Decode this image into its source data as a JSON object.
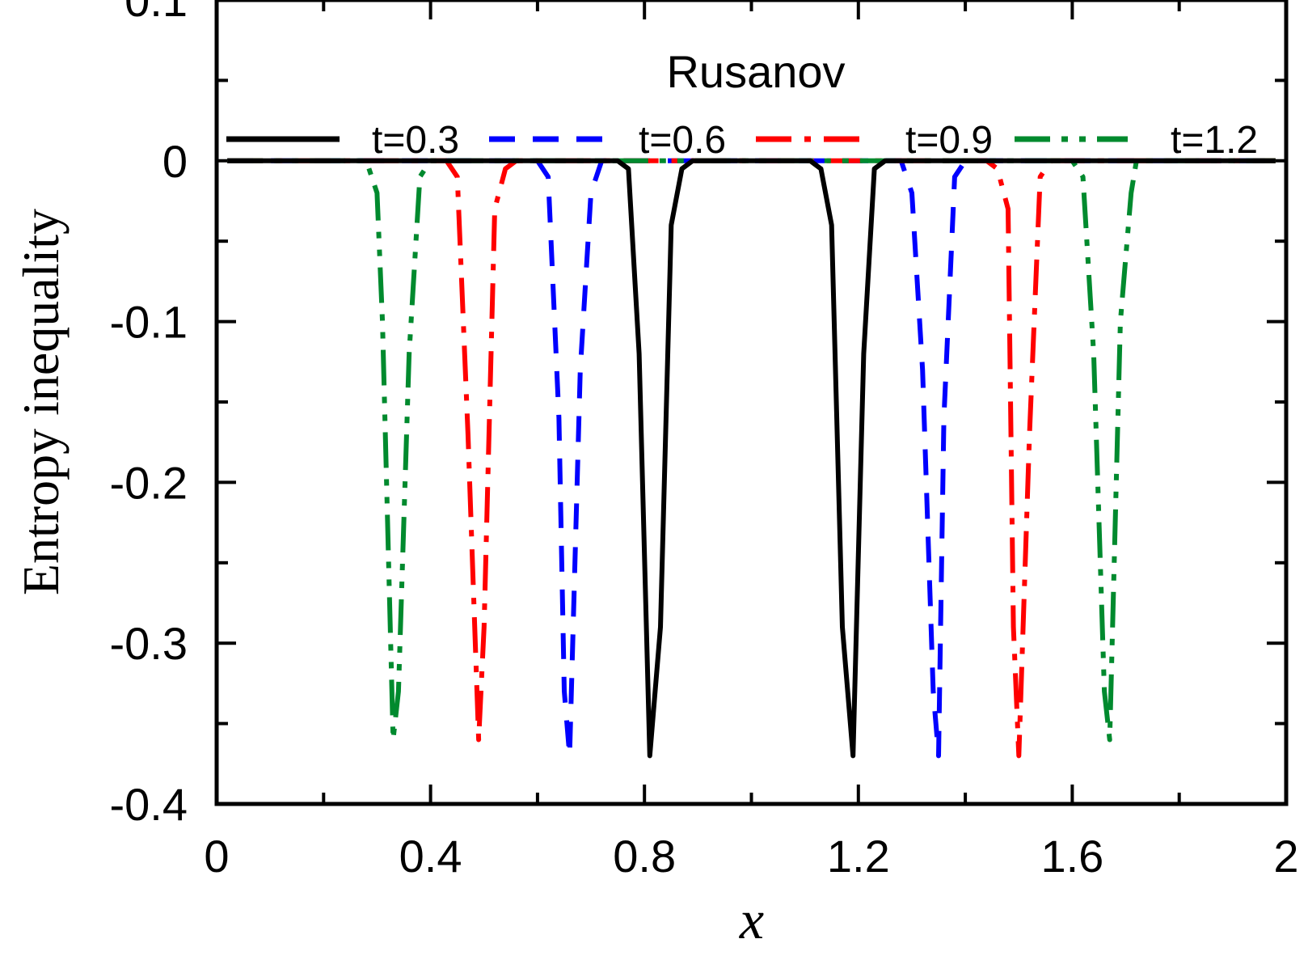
{
  "chart_data": {
    "type": "line",
    "title": "Rusanov",
    "xlabel": "x",
    "ylabel": "Entropy inequality",
    "xlim": [
      0,
      2
    ],
    "ylim": [
      -0.4,
      0.1
    ],
    "grid": false,
    "legend_position": "top",
    "x_ticks": [
      {
        "value": 0,
        "label": "0"
      },
      {
        "value": 0.4,
        "label": "0.4"
      },
      {
        "value": 0.8,
        "label": "0.8"
      },
      {
        "value": 1.2,
        "label": "1.2"
      },
      {
        "value": 1.6,
        "label": "1.6"
      },
      {
        "value": 2,
        "label": "2"
      }
    ],
    "y_ticks": [
      {
        "value": 0.1,
        "label": "0.1"
      },
      {
        "value": 0,
        "label": "0"
      },
      {
        "value": -0.1,
        "label": "-0.1"
      },
      {
        "value": -0.2,
        "label": "-0.2"
      },
      {
        "value": -0.3,
        "label": "-0.3"
      },
      {
        "value": -0.4,
        "label": "-0.4"
      }
    ],
    "series": [
      {
        "name": "t=0.3",
        "color": "#000000",
        "style": "solid",
        "x": [
          0.02,
          0.75,
          0.77,
          0.79,
          0.81,
          0.83,
          0.85,
          0.87,
          0.89,
          1.11,
          1.13,
          1.15,
          1.17,
          1.19,
          1.21,
          1.23,
          1.25,
          1.98
        ],
        "y": [
          0,
          0,
          -0.005,
          -0.12,
          -0.37,
          -0.29,
          -0.04,
          -0.005,
          0,
          0,
          -0.005,
          -0.04,
          -0.29,
          -0.37,
          -0.12,
          -0.005,
          0,
          0
        ]
      },
      {
        "name": "t=0.6",
        "color": "#0000ff",
        "style": "dashed",
        "x": [
          0.02,
          0.6,
          0.62,
          0.64,
          0.65,
          0.66,
          0.68,
          0.7,
          0.72,
          1.28,
          1.3,
          1.32,
          1.34,
          1.35,
          1.36,
          1.38,
          1.4,
          1.98
        ],
        "y": [
          0,
          0,
          -0.01,
          -0.16,
          -0.33,
          -0.37,
          -0.13,
          -0.02,
          0,
          0,
          -0.02,
          -0.13,
          -0.33,
          -0.37,
          -0.16,
          -0.01,
          0,
          0
        ]
      },
      {
        "name": "t=0.9",
        "color": "#ff0000",
        "style": "dashdot",
        "x": [
          0.02,
          0.43,
          0.45,
          0.47,
          0.49,
          0.5,
          0.52,
          0.54,
          0.56,
          1.44,
          1.46,
          1.48,
          1.49,
          1.5,
          1.52,
          1.54,
          1.56,
          1.98
        ],
        "y": [
          0,
          0,
          -0.01,
          -0.17,
          -0.36,
          -0.29,
          -0.03,
          -0.005,
          0,
          0,
          -0.005,
          -0.03,
          -0.29,
          -0.37,
          -0.17,
          -0.01,
          0,
          0
        ]
      },
      {
        "name": "t=1.2",
        "color": "#008a2e",
        "style": "dashdotdot",
        "x": [
          0.02,
          0.28,
          0.3,
          0.31,
          0.33,
          0.34,
          0.36,
          0.38,
          0.4,
          1.6,
          1.62,
          1.64,
          1.66,
          1.67,
          1.69,
          1.71,
          1.72,
          1.98
        ],
        "y": [
          0,
          0,
          -0.02,
          -0.1,
          -0.36,
          -0.33,
          -0.12,
          -0.01,
          0,
          0,
          -0.01,
          -0.12,
          -0.33,
          -0.36,
          -0.1,
          -0.02,
          0,
          0
        ]
      }
    ]
  }
}
